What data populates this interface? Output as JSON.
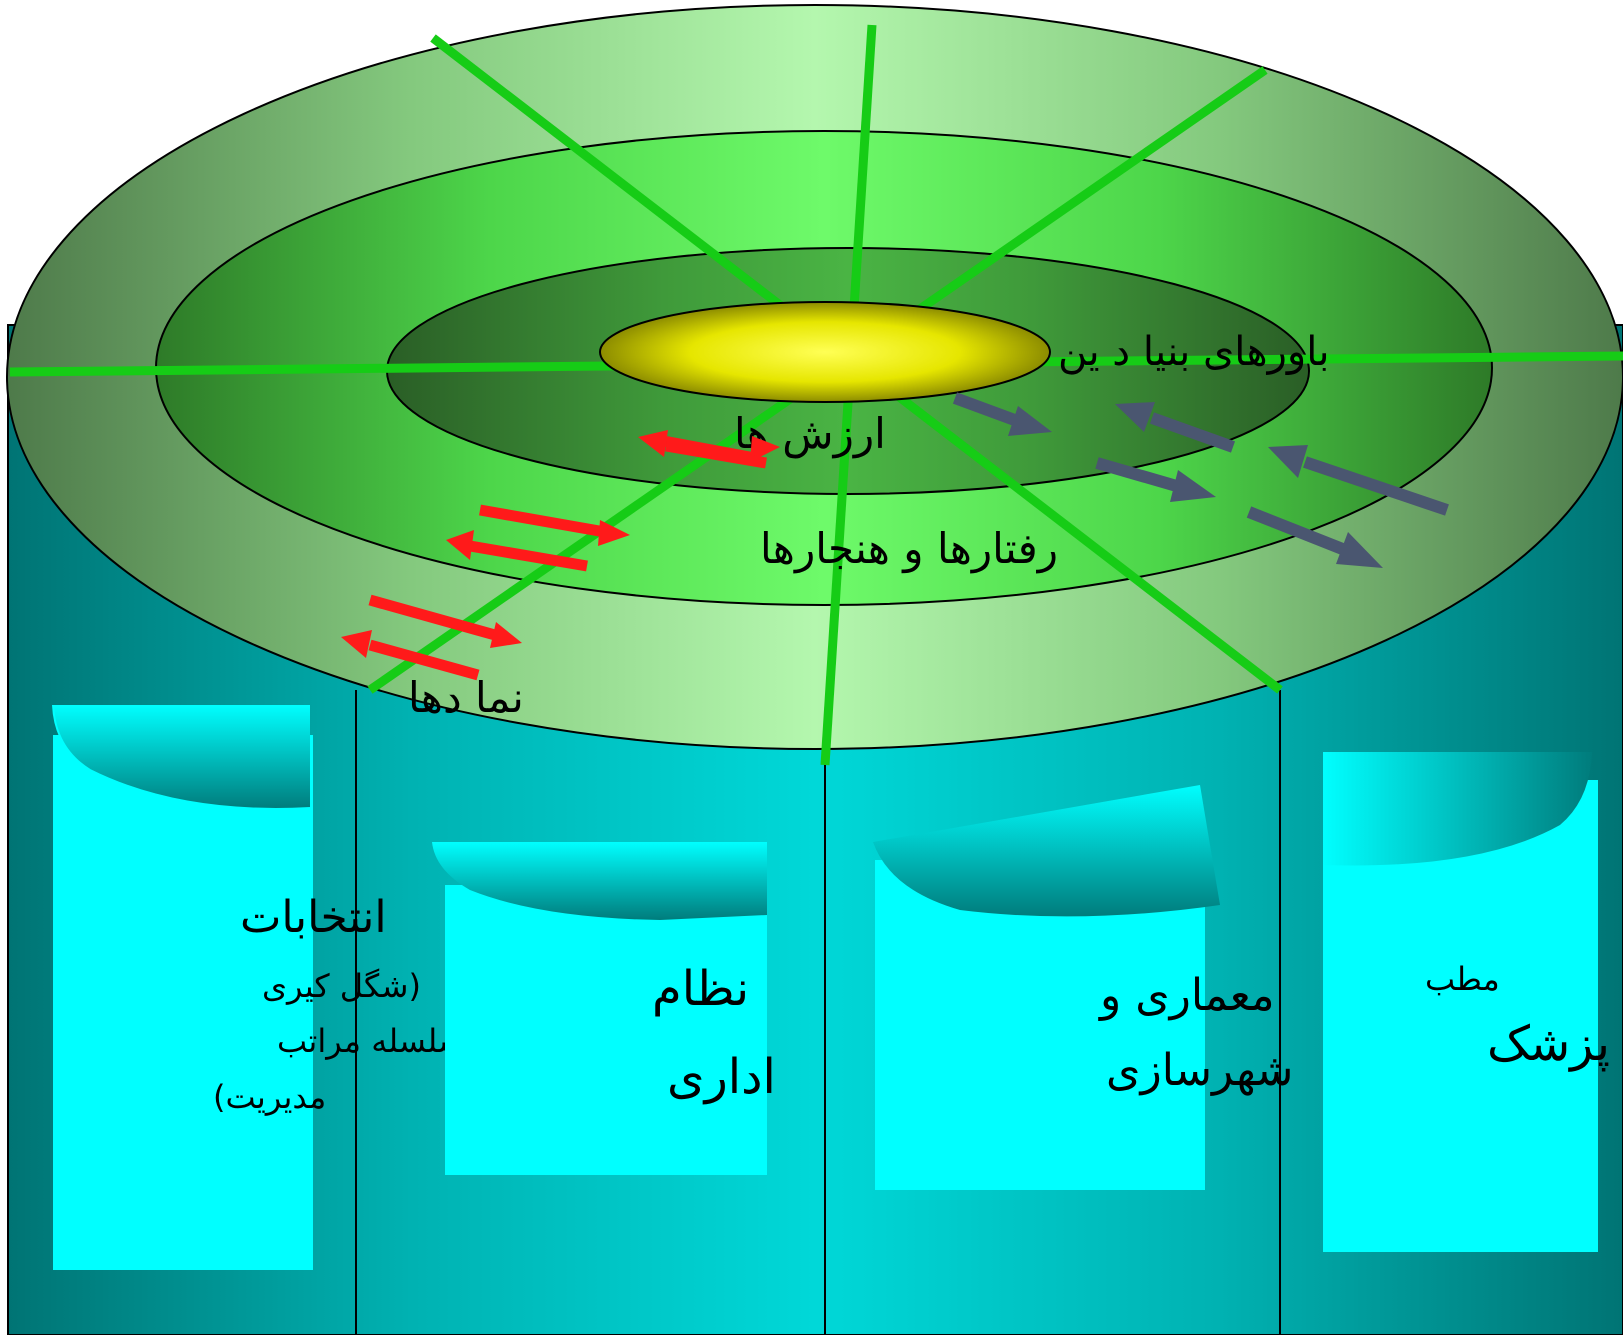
{
  "core": {
    "label": "باورهای بنیا د ین"
  },
  "rings": {
    "values": "ارزش ها",
    "behaviors": "رفتارها و هنجارها",
    "symbols": "نما دها"
  },
  "panels": {
    "elections": {
      "line1": "انتخابات",
      "line2": "(شگل کیری",
      "line3": "سلسله مراتب",
      "line4": "مدیریت)"
    },
    "administration": {
      "line1": "نظام",
      "line2": "اداری"
    },
    "architecture": {
      "line1": "معماری و",
      "line2": "شهرسازی"
    },
    "clinic": {
      "line1": "مطب",
      "line2": "پزشک"
    }
  },
  "colors": {
    "cylinder": "#00C7C7",
    "cylinder_dark": "#007A7A",
    "panel": "#00FFFF",
    "ring_light": "#A6F2A0",
    "ring_dark": "#2F6B2A",
    "spoke": "#16CC16",
    "core": "#E6E600",
    "arrow_red": "#FF1A1A",
    "arrow_gray": "#4A5670"
  }
}
